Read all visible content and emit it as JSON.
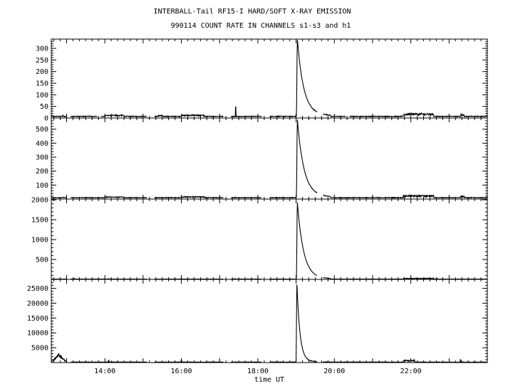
{
  "chart_data": {
    "type": "line",
    "title": "INTERBALL-Tail RF15-I HARD/SOFT X-RAY EMISSION",
    "subtitle": "990114  COUNT RATE IN CHANNELS s1-s3 and h1",
    "xlabel": "time UT",
    "xlim": [
      12.6,
      24.0
    ],
    "x_ticks": [
      14,
      16,
      18,
      20,
      22
    ],
    "x_tick_labels": [
      "14:00",
      "16:00",
      "18:00",
      "20:00",
      "22:00"
    ],
    "grid": false,
    "panels": [
      {
        "ylim": [
          0,
          340
        ],
        "y_ticks": [
          0,
          50,
          100,
          150,
          200,
          250,
          300
        ],
        "y_tick_labels": [
          "0",
          "50",
          "100",
          "150",
          "200",
          "250",
          "300"
        ],
        "peak_time": 19.03,
        "peak_value": 330,
        "decay_hours": 0.16,
        "tail_value": 12,
        "tail_decay_hours": 0.8,
        "baseline": 7,
        "noise": 1.5,
        "gap_after": 19.9,
        "bursts": [
          [
            14.0,
            14.5,
            4
          ],
          [
            15.4,
            15.5,
            3
          ],
          [
            16.0,
            16.6,
            4
          ],
          [
            21.8,
            22.6,
            9
          ],
          [
            23.3,
            23.4,
            6
          ]
        ],
        "spikes": [
          [
            12.9,
            12
          ],
          [
            13.6,
            10
          ],
          [
            17.42,
            48
          ],
          [
            18.52,
            9
          ]
        ],
        "data_gaps": [
          [
            13.0,
            13.1
          ],
          [
            13.8,
            13.9
          ],
          [
            15.1,
            15.3
          ],
          [
            17.1,
            17.3
          ],
          [
            18.1,
            18.3
          ],
          [
            19.55,
            19.7
          ],
          [
            20.3,
            20.4
          ]
        ]
      },
      {
        "ylim": [
          0,
          580
        ],
        "y_ticks": [
          100,
          200,
          300,
          400,
          500
        ],
        "y_tick_labels": [
          "100",
          "200",
          "300",
          "400",
          "500"
        ],
        "peak_time": 19.03,
        "peak_value": 555,
        "decay_hours": 0.17,
        "tail_value": 15,
        "tail_decay_hours": 0.8,
        "baseline": 10,
        "noise": 2.0,
        "gap_after": 19.9,
        "bursts": [
          [
            14.0,
            14.5,
            4
          ],
          [
            16.0,
            16.6,
            5
          ],
          [
            21.8,
            22.6,
            12
          ],
          [
            23.3,
            23.4,
            8
          ]
        ],
        "spikes": [
          [
            12.9,
            14
          ],
          [
            13.6,
            12
          ],
          [
            17.42,
            14
          ]
        ],
        "data_gaps": [
          [
            13.0,
            13.1
          ],
          [
            15.1,
            15.3
          ],
          [
            17.1,
            17.3
          ],
          [
            18.1,
            18.3
          ],
          [
            19.55,
            19.7
          ]
        ]
      },
      {
        "ylim": [
          0,
          2020
        ],
        "y_ticks": [
          500,
          1000,
          1500,
          2000
        ],
        "y_tick_labels": [
          "500",
          "1000",
          "1500",
          "2000"
        ],
        "peak_time": 19.03,
        "peak_value": 1940,
        "decay_hours": 0.16,
        "tail_value": 30,
        "tail_decay_hours": 0.6,
        "baseline": 8,
        "noise": 3.0,
        "gap_after": 19.9,
        "bursts": [
          [
            21.8,
            22.6,
            15
          ]
        ],
        "spikes": [
          [
            13.2,
            25
          ],
          [
            14.1,
            20
          ],
          [
            16.0,
            25
          ],
          [
            17.4,
            20
          ],
          [
            22.7,
            20
          ]
        ],
        "data_gaps": [
          [
            13.0,
            13.1
          ],
          [
            15.1,
            15.3
          ],
          [
            17.1,
            17.3
          ],
          [
            18.1,
            18.3
          ],
          [
            19.55,
            19.7
          ]
        ]
      },
      {
        "ylim": [
          0,
          28000
        ],
        "y_ticks": [
          5000,
          10000,
          15000,
          20000,
          25000
        ],
        "y_tick_labels": [
          "5000",
          "10000",
          "15000",
          "20000",
          "25000"
        ],
        "peak_time": 19.02,
        "peak_value": 26500,
        "decay_hours": 0.08,
        "tail_value": 600,
        "tail_decay_hours": 0.3,
        "baseline": 150,
        "noise": 80,
        "gap_after": 19.9,
        "start_hump": [
          12.6,
          13.0,
          3000
        ],
        "bursts": [
          [
            21.8,
            22.1,
            500
          ]
        ],
        "spikes": [
          [
            14.1,
            800
          ],
          [
            16.0,
            900
          ],
          [
            23.3,
            1000
          ]
        ],
        "data_gaps": [
          [
            13.0,
            13.1
          ],
          [
            15.1,
            15.3
          ],
          [
            17.1,
            17.3
          ],
          [
            18.1,
            18.3
          ],
          [
            19.55,
            19.7
          ]
        ]
      }
    ]
  }
}
